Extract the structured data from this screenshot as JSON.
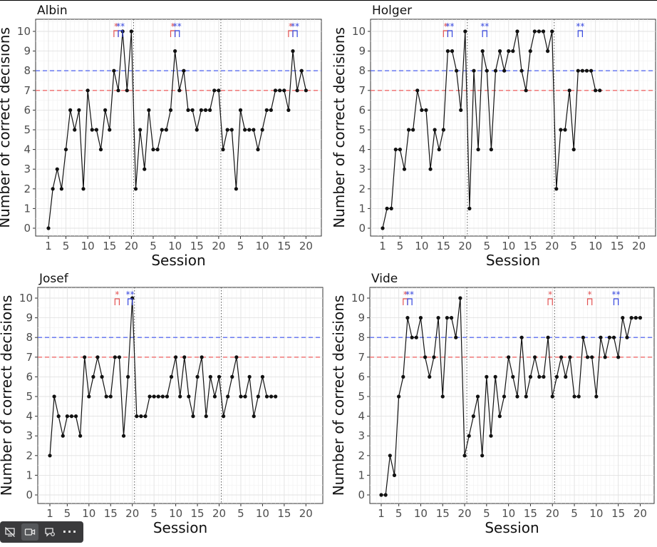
{
  "chart_data": [
    {
      "type": "line",
      "title": "Albin",
      "xlabel": "Session",
      "ylabel": "Number of correct decisions",
      "ylim": [
        0,
        10
      ],
      "phase_lengths": [
        20,
        20,
        20
      ],
      "x_ticks": [
        "1",
        "5",
        "10",
        "15",
        "20",
        "5",
        "10",
        "15",
        "20",
        "5",
        "10",
        "15",
        "20"
      ],
      "y_ticks": [
        "0",
        "1",
        "2",
        "3",
        "4",
        "5",
        "6",
        "7",
        "8",
        "9",
        "10"
      ],
      "reference_lines": [
        {
          "y": 8,
          "color": "#5b6ef0"
        },
        {
          "y": 7,
          "color": "#f06b6b"
        }
      ],
      "values": [
        0,
        2,
        3,
        2,
        4,
        6,
        5,
        6,
        2,
        7,
        5,
        5,
        4,
        6,
        5,
        8,
        7,
        10,
        7,
        10,
        2,
        5,
        3,
        6,
        4,
        4,
        5,
        5,
        6,
        9,
        7,
        8,
        6,
        6,
        5,
        6,
        6,
        6,
        7,
        7,
        4,
        5,
        5,
        2,
        6,
        5,
        5,
        5,
        4,
        5,
        6,
        6,
        7,
        7,
        7,
        6,
        9,
        7,
        8,
        7
      ],
      "annotations": [
        {
          "phase": 1,
          "start": 16,
          "end": 17,
          "color": "#e25050",
          "label": "*"
        },
        {
          "phase": 1,
          "start": 17,
          "end": 18,
          "color": "#3344dd",
          "label": "**"
        },
        {
          "phase": 2,
          "start": 9,
          "end": 10,
          "color": "#e25050",
          "label": "*"
        },
        {
          "phase": 2,
          "start": 10,
          "end": 11,
          "color": "#3344dd",
          "label": "**"
        },
        {
          "phase": 3,
          "start": 16,
          "end": 17,
          "color": "#e25050",
          "label": "*"
        },
        {
          "phase": 3,
          "start": 17,
          "end": 18,
          "color": "#3344dd",
          "label": "**"
        }
      ]
    },
    {
      "type": "line",
      "title": "Holger",
      "xlabel": "Session",
      "ylabel": "Number of correct decisions",
      "ylim": [
        0,
        10
      ],
      "phase_lengths": [
        20,
        20,
        11
      ],
      "x_ticks": [
        "1",
        "5",
        "10",
        "15",
        "20",
        "5",
        "10",
        "15",
        "20",
        "5",
        "10",
        "15",
        "20"
      ],
      "y_ticks": [
        "0",
        "1",
        "2",
        "3",
        "4",
        "5",
        "6",
        "7",
        "8",
        "9",
        "10"
      ],
      "reference_lines": [
        {
          "y": 8,
          "color": "#5b6ef0"
        },
        {
          "y": 7,
          "color": "#f06b6b"
        }
      ],
      "values": [
        0,
        1,
        1,
        4,
        4,
        3,
        5,
        5,
        7,
        6,
        6,
        3,
        5,
        4,
        5,
        9,
        9,
        8,
        6,
        10,
        1,
        8,
        4,
        9,
        8,
        4,
        8,
        9,
        8,
        9,
        9,
        10,
        8,
        7,
        9,
        10,
        10,
        10,
        9,
        10,
        2,
        5,
        5,
        7,
        4,
        8,
        8,
        8,
        8,
        7,
        7
      ],
      "annotations": [
        {
          "phase": 1,
          "start": 15,
          "end": 16,
          "color": "#e25050",
          "label": "*"
        },
        {
          "phase": 1,
          "start": 16,
          "end": 17,
          "color": "#3344dd",
          "label": "**"
        },
        {
          "phase": 2,
          "start": 4,
          "end": 5,
          "color": "#3344dd",
          "label": "**"
        },
        {
          "phase": 3,
          "start": 6,
          "end": 7,
          "color": "#3344dd",
          "label": "**"
        }
      ]
    },
    {
      "type": "line",
      "title": "Josef",
      "xlabel": "Session",
      "ylabel": "Number of correct decisions",
      "ylim": [
        0,
        10
      ],
      "phase_lengths": [
        20,
        20,
        13
      ],
      "x_ticks": [
        "1",
        "5",
        "10",
        "15",
        "20",
        "5",
        "10",
        "15",
        "20",
        "5",
        "10",
        "15",
        "20"
      ],
      "y_ticks": [
        "0",
        "1",
        "2",
        "3",
        "4",
        "5",
        "6",
        "7",
        "8",
        "9",
        "10"
      ],
      "reference_lines": [
        {
          "y": 8,
          "color": "#5b6ef0"
        },
        {
          "y": 7,
          "color": "#f06b6b"
        }
      ],
      "values": [
        2,
        5,
        4,
        3,
        4,
        4,
        4,
        3,
        7,
        5,
        6,
        7,
        6,
        5,
        5,
        7,
        7,
        3,
        6,
        10,
        4,
        4,
        4,
        5,
        5,
        5,
        5,
        5,
        6,
        7,
        5,
        7,
        5,
        4,
        6,
        7,
        4,
        6,
        5,
        6,
        4,
        5,
        6,
        7,
        5,
        5,
        6,
        4,
        5,
        6,
        5,
        5,
        5
      ],
      "annotations": [
        {
          "phase": 1,
          "start": 16,
          "end": 17,
          "color": "#e25050",
          "label": "*"
        },
        {
          "phase": 1,
          "start": 19,
          "end": 20,
          "color": "#3344dd",
          "label": "**"
        }
      ]
    },
    {
      "type": "line",
      "title": "Vide",
      "xlabel": "Session",
      "ylabel": "Number of correct decisions",
      "ylim": [
        0,
        10
      ],
      "phase_lengths": [
        20,
        20,
        20
      ],
      "x_ticks": [
        "1",
        "5",
        "10",
        "15",
        "20",
        "5",
        "10",
        "15",
        "20",
        "5",
        "10",
        "15",
        "20"
      ],
      "y_ticks": [
        "0",
        "1",
        "2",
        "3",
        "4",
        "5",
        "6",
        "7",
        "8",
        "9",
        "10"
      ],
      "reference_lines": [
        {
          "y": 8,
          "color": "#5b6ef0"
        },
        {
          "y": 7,
          "color": "#f06b6b"
        }
      ],
      "values": [
        0,
        0,
        2,
        1,
        5,
        6,
        9,
        8,
        8,
        9,
        7,
        6,
        7,
        9,
        5,
        9,
        9,
        8,
        10,
        2,
        3,
        4,
        5,
        2,
        6,
        3,
        6,
        4,
        5,
        7,
        6,
        5,
        8,
        5,
        6,
        7,
        6,
        6,
        8,
        5,
        6,
        7,
        6,
        7,
        5,
        5,
        8,
        7,
        7,
        5,
        8,
        7,
        8,
        8,
        7,
        9,
        8,
        9,
        9,
        9
      ],
      "annotations": [
        {
          "phase": 1,
          "start": 6,
          "end": 7,
          "color": "#e25050",
          "label": "*"
        },
        {
          "phase": 1,
          "start": 7,
          "end": 8,
          "color": "#3344dd",
          "label": "**"
        },
        {
          "phase": 2,
          "start": 19,
          "end": 20,
          "color": "#e25050",
          "label": "*"
        },
        {
          "phase": 3,
          "start": 8,
          "end": 9,
          "color": "#e25050",
          "label": "*"
        },
        {
          "phase": 3,
          "start": 14,
          "end": 15,
          "color": "#3344dd",
          "label": "**"
        }
      ]
    }
  ],
  "toolbar": {
    "buttons": [
      {
        "icon": "screen-off-icon"
      },
      {
        "icon": "video-camera-icon"
      },
      {
        "icon": "comment-settings-icon"
      }
    ],
    "more_label": "···"
  }
}
